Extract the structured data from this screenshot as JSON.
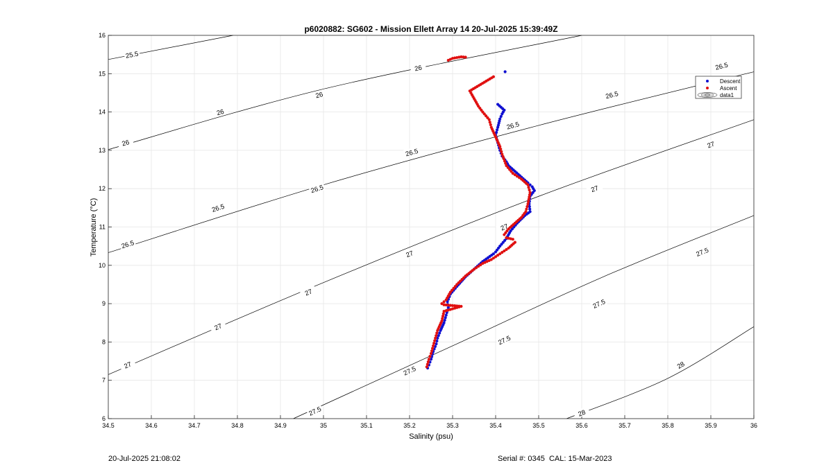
{
  "chart_data": {
    "type": "scatter",
    "title": "p6020882: SG602 - Mission Ellett Array 14 20-Jul-2025 15:39:49Z",
    "xlabel": "Salinity (psu)",
    "ylabel": "Temperature (°C)",
    "xlim": [
      34.5,
      36
    ],
    "ylim": [
      6,
      16
    ],
    "xticks": [
      "34.5",
      "34.6",
      "34.7",
      "34.8",
      "34.9",
      "35",
      "35.1",
      "35.2",
      "35.3",
      "35.4",
      "35.5",
      "35.6",
      "35.7",
      "35.8",
      "35.9",
      "36"
    ],
    "yticks": [
      "6",
      "7",
      "8",
      "9",
      "10",
      "11",
      "12",
      "13",
      "14",
      "15",
      "16"
    ],
    "grid": true,
    "legend_position": "top-right",
    "legend": [
      "Descent",
      "Ascent",
      "data1"
    ],
    "colors": {
      "descent": "#1010d0",
      "ascent": "#e01010",
      "contour": "#000000",
      "grid": "#e6e6e6"
    },
    "series": [
      {
        "name": "Descent",
        "points": [
          [
            35.422,
            15.05
          ],
          [
            35.405,
            14.2
          ],
          [
            35.42,
            14.05
          ],
          [
            35.415,
            13.95
          ],
          [
            35.41,
            13.82
          ],
          [
            35.405,
            13.6
          ],
          [
            35.4,
            13.4
          ],
          [
            35.405,
            13.2
          ],
          [
            35.41,
            13.0
          ],
          [
            35.415,
            12.85
          ],
          [
            35.425,
            12.7
          ],
          [
            35.43,
            12.6
          ],
          [
            35.445,
            12.45
          ],
          [
            35.46,
            12.3
          ],
          [
            35.475,
            12.15
          ],
          [
            35.485,
            12.05
          ],
          [
            35.49,
            11.95
          ],
          [
            35.48,
            11.8
          ],
          [
            35.478,
            11.6
          ],
          [
            35.48,
            11.4
          ],
          [
            35.468,
            11.3
          ],
          [
            35.45,
            11.1
          ],
          [
            35.435,
            10.9
          ],
          [
            35.425,
            10.7
          ],
          [
            35.41,
            10.5
          ],
          [
            35.4,
            10.35
          ],
          [
            35.395,
            10.3
          ],
          [
            35.37,
            10.1
          ],
          [
            35.35,
            9.9
          ],
          [
            35.33,
            9.7
          ],
          [
            35.31,
            9.45
          ],
          [
            35.295,
            9.25
          ],
          [
            35.288,
            9.05
          ],
          [
            35.29,
            8.9
          ],
          [
            35.285,
            8.7
          ],
          [
            35.28,
            8.5
          ],
          [
            35.272,
            8.3
          ],
          [
            35.265,
            8.1
          ],
          [
            35.262,
            7.95
          ],
          [
            35.255,
            7.75
          ],
          [
            35.25,
            7.55
          ],
          [
            35.245,
            7.4
          ],
          [
            35.242,
            7.32
          ]
        ]
      },
      {
        "name": "Ascent",
        "points": [
          [
            35.29,
            15.35
          ],
          [
            35.3,
            15.4
          ],
          [
            35.31,
            15.42
          ],
          [
            35.32,
            15.44
          ],
          [
            35.33,
            15.43
          ],
          [
            35.395,
            14.92
          ],
          [
            35.34,
            14.55
          ],
          [
            35.35,
            14.35
          ],
          [
            35.36,
            14.15
          ],
          [
            35.37,
            14.0
          ],
          [
            35.385,
            13.8
          ],
          [
            35.39,
            13.6
          ],
          [
            35.4,
            13.35
          ],
          [
            35.41,
            13.1
          ],
          [
            35.415,
            12.9
          ],
          [
            35.425,
            12.6
          ],
          [
            35.44,
            12.4
          ],
          [
            35.46,
            12.25
          ],
          [
            35.475,
            12.1
          ],
          [
            35.48,
            11.9
          ],
          [
            35.475,
            11.6
          ],
          [
            35.47,
            11.4
          ],
          [
            35.46,
            11.25
          ],
          [
            35.445,
            11.1
          ],
          [
            35.43,
            10.95
          ],
          [
            35.42,
            10.8
          ],
          [
            35.425,
            10.72
          ],
          [
            35.44,
            10.68
          ],
          [
            35.445,
            10.6
          ],
          [
            35.43,
            10.45
          ],
          [
            35.41,
            10.3
          ],
          [
            35.39,
            10.15
          ],
          [
            35.37,
            10.05
          ],
          [
            35.35,
            9.9
          ],
          [
            35.33,
            9.72
          ],
          [
            35.31,
            9.5
          ],
          [
            35.295,
            9.3
          ],
          [
            35.285,
            9.1
          ],
          [
            35.275,
            9.0
          ],
          [
            35.28,
            8.97
          ],
          [
            35.3,
            8.95
          ],
          [
            35.32,
            8.93
          ],
          [
            35.28,
            8.8
          ],
          [
            35.275,
            8.55
          ],
          [
            35.265,
            8.3
          ],
          [
            35.26,
            8.1
          ],
          [
            35.255,
            7.9
          ],
          [
            35.25,
            7.7
          ],
          [
            35.245,
            7.55
          ],
          [
            35.24,
            7.35
          ]
        ]
      }
    ],
    "contours": [
      {
        "label": "25.5",
        "points": [
          [
            34.5,
            15.37
          ],
          [
            34.79,
            16
          ]
        ],
        "labels_at": [
          [
            34.555,
            15.5
          ]
        ]
      },
      {
        "label": "26",
        "points": [
          [
            34.5,
            13.02
          ],
          [
            35.0,
            14.6
          ],
          [
            35.6,
            16
          ]
        ],
        "labels_at": [
          [
            34.54,
            13.2
          ],
          [
            34.76,
            14.0
          ],
          [
            34.99,
            14.45
          ],
          [
            35.22,
            15.15
          ]
        ]
      },
      {
        "label": "26.5",
        "points": [
          [
            34.5,
            10.33
          ],
          [
            35.0,
            12.1
          ],
          [
            35.5,
            13.65
          ],
          [
            36,
            15.05
          ]
        ],
        "labels_at": [
          [
            34.545,
            10.55
          ],
          [
            34.755,
            11.5
          ],
          [
            34.985,
            12.0
          ],
          [
            35.205,
            12.95
          ],
          [
            35.44,
            13.65
          ],
          [
            35.67,
            14.45
          ],
          [
            35.925,
            15.2
          ]
        ]
      },
      {
        "label": "27",
        "points": [
          [
            34.5,
            7.15
          ],
          [
            35.0,
            9.55
          ],
          [
            35.5,
            11.8
          ],
          [
            36,
            13.8
          ]
        ],
        "labels_at": [
          [
            34.545,
            7.4
          ],
          [
            34.755,
            8.4
          ],
          [
            34.965,
            9.3
          ],
          [
            35.2,
            10.3
          ],
          [
            35.42,
            11.0
          ],
          [
            35.63,
            12.0
          ],
          [
            35.9,
            13.15
          ]
        ]
      },
      {
        "label": "27.5",
        "points": [
          [
            34.93,
            6
          ],
          [
            35.3,
            7.9
          ],
          [
            35.65,
            9.7
          ],
          [
            36,
            11.3
          ]
        ],
        "labels_at": [
          [
            34.98,
            6.2
          ],
          [
            35.2,
            7.25
          ],
          [
            35.42,
            8.05
          ],
          [
            35.64,
            9.0
          ],
          [
            35.88,
            10.35
          ]
        ]
      },
      {
        "label": "28",
        "points": [
          [
            35.565,
            6
          ],
          [
            35.8,
            7.05
          ],
          [
            36,
            8.4
          ]
        ],
        "labels_at": [
          [
            35.6,
            6.15
          ],
          [
            35.83,
            7.4
          ]
        ]
      }
    ]
  },
  "footer": {
    "left": "20-Jul-2025 21:08:02",
    "right": "Serial #: 0345  CAL: 15-Mar-2023"
  }
}
